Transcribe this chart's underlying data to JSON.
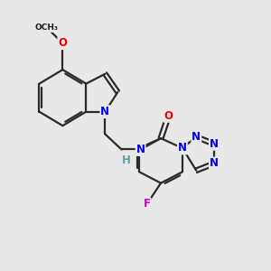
{
  "bg_color": "#e8e8e8",
  "bond_color": "#2a2a2a",
  "N_color": "#0000ee",
  "O_color": "#ee0000",
  "F_color": "#cc00cc",
  "H_color": "#5f9ea0",
  "lw": 1.6,
  "fs": 8.5,
  "xlim": [
    0,
    4.2
  ],
  "ylim": [
    0,
    3.8
  ]
}
